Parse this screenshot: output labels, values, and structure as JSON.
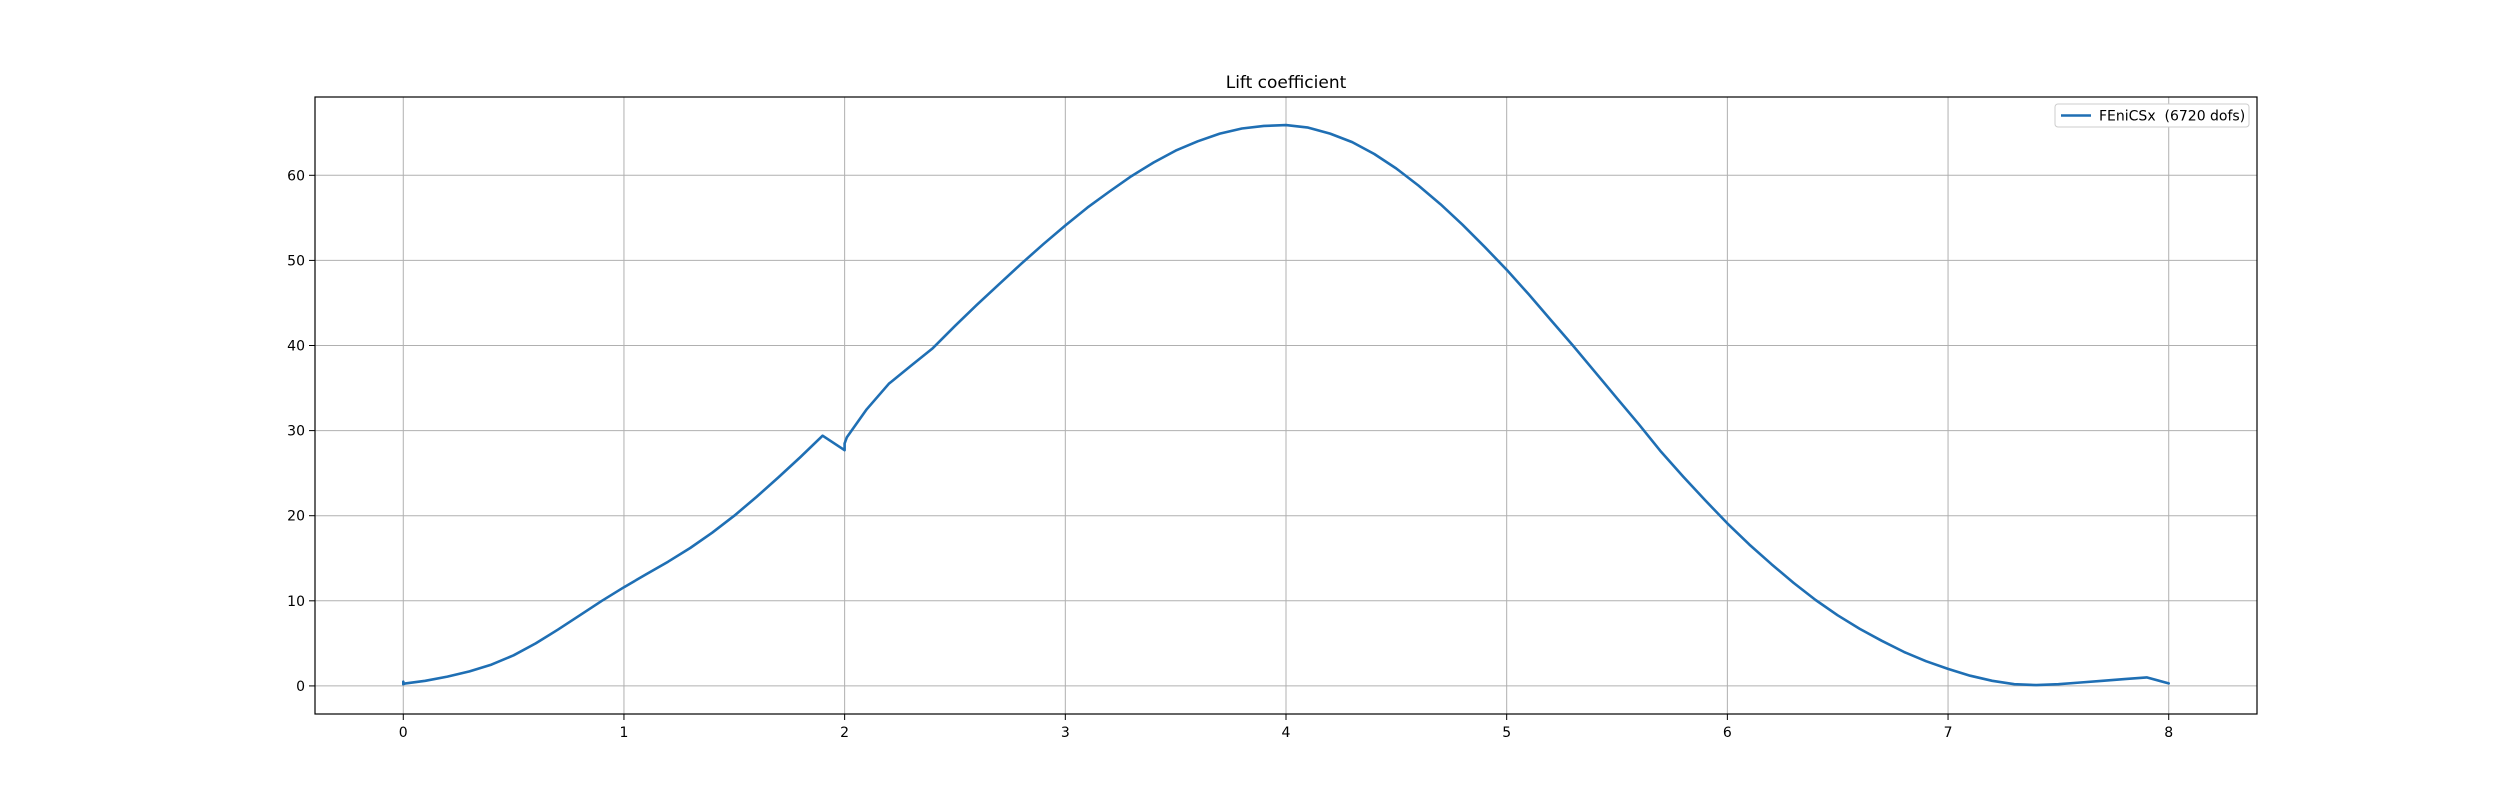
{
  "chart_data": {
    "type": "line",
    "title": "Lift coefficient",
    "xlabel": "",
    "ylabel": "",
    "xlim": [
      -0.4,
      8.4
    ],
    "ylim": [
      -3.3,
      69.2
    ],
    "xticks": [
      0,
      1,
      2,
      3,
      4,
      5,
      6,
      7,
      8
    ],
    "yticks": [
      0,
      10,
      20,
      30,
      40,
      50,
      60
    ],
    "grid": true,
    "legend_position": "top-right",
    "series": [
      {
        "name": "FEniCSx  (6720 dofs)",
        "color": "#1f6fb4",
        "x": [
          0.0,
          0.0,
          0.01,
          0.1,
          0.2,
          0.3,
          0.4,
          0.5,
          0.6,
          0.7,
          0.8,
          0.9,
          1.0,
          1.1,
          1.2,
          1.3,
          1.4,
          1.5,
          1.6,
          1.7,
          1.8,
          1.9,
          2.0,
          2.0,
          2.01,
          2.1,
          2.2,
          2.3,
          2.4,
          2.5,
          2.6,
          2.7,
          2.8,
          2.9,
          3.0,
          3.1,
          3.2,
          3.3,
          3.4,
          3.5,
          3.6,
          3.7,
          3.8,
          3.9,
          4.0,
          4.1,
          4.2,
          4.3,
          4.4,
          4.5,
          4.6,
          4.7,
          4.8,
          4.9,
          5.0,
          5.1,
          5.2,
          5.3,
          5.4,
          5.5,
          5.6,
          5.7,
          5.8,
          5.9,
          6.0,
          6.1,
          6.2,
          6.3,
          6.4,
          6.5,
          6.6,
          6.7,
          6.8,
          6.9,
          7.0,
          7.1,
          7.2,
          7.3,
          7.4,
          7.5,
          7.6,
          7.7,
          7.8,
          7.9,
          8.0
        ],
        "y": [
          0.5,
          0.2,
          0.3,
          0.6,
          1.1,
          1.7,
          2.5,
          3.6,
          5.0,
          6.6,
          8.3,
          10.0,
          11.6,
          13.1,
          14.6,
          16.2,
          18.0,
          20.0,
          22.2,
          24.5,
          26.9,
          29.4,
          27.7,
          28.5,
          29.2,
          32.5,
          35.5,
          37.6,
          39.7,
          42.3,
          44.8,
          47.2,
          49.6,
          51.9,
          54.1,
          56.2,
          58.1,
          59.9,
          61.5,
          62.9,
          64.0,
          64.9,
          65.5,
          65.8,
          65.9,
          65.6,
          64.9,
          63.9,
          62.5,
          60.8,
          58.8,
          56.6,
          54.2,
          51.6,
          48.9,
          46.0,
          43.0,
          40.0,
          36.9,
          33.8,
          30.7,
          27.5,
          24.6,
          21.8,
          19.1,
          16.6,
          14.3,
          12.1,
          10.1,
          8.3,
          6.7,
          5.3,
          4.0,
          2.9,
          2.0,
          1.2,
          0.6,
          0.2,
          0.1,
          0.2,
          0.4,
          0.6,
          0.8,
          1.0,
          0.3
        ]
      }
    ]
  }
}
